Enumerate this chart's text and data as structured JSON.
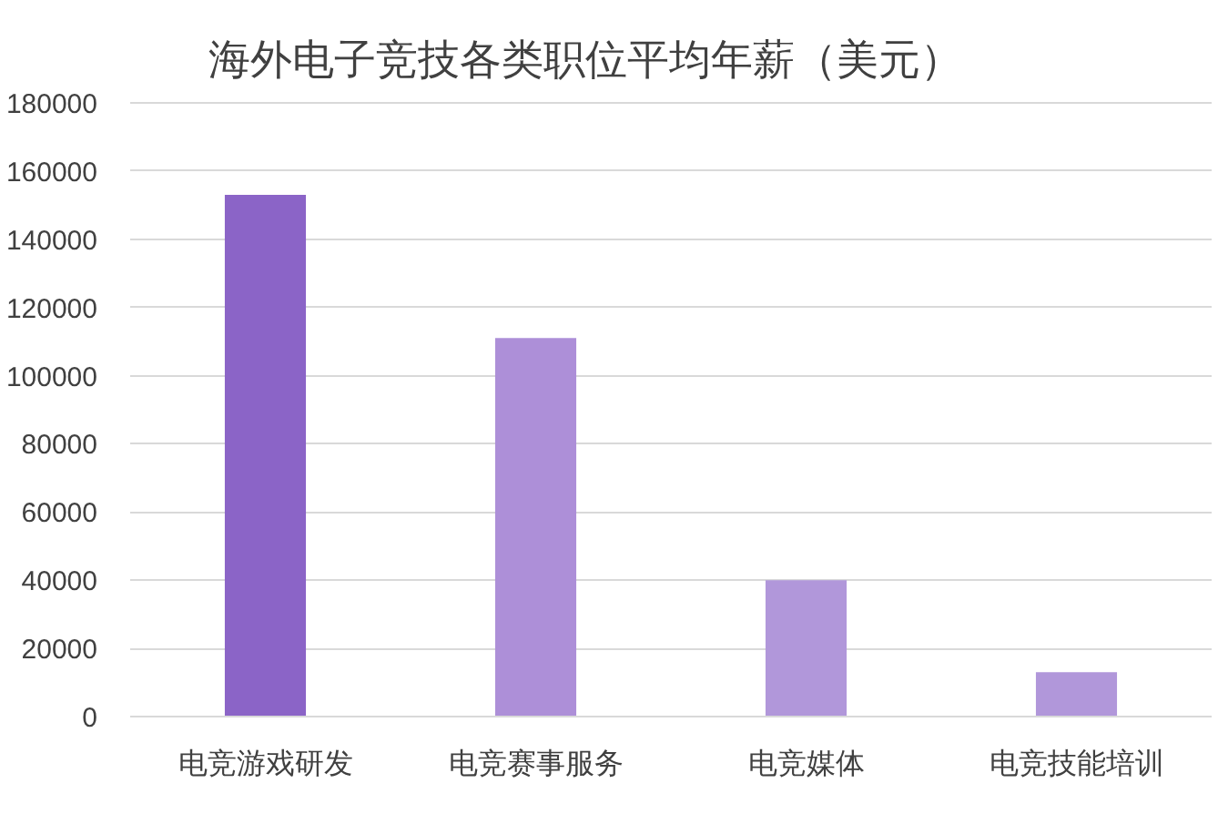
{
  "chart_data": {
    "type": "bar",
    "title": "海外电子竞技各类职位平均年薪（美元）",
    "categories": [
      "电竞游戏研发",
      "电竞赛事服务",
      "电竞媒体",
      "电竞技能培训"
    ],
    "values": [
      153000,
      111000,
      40000,
      13000
    ],
    "colors": [
      "#8b64c7",
      "#ad8fd8",
      "#b197da",
      "#b197da"
    ],
    "ylim": [
      0,
      180000
    ],
    "yticks": [
      0,
      20000,
      40000,
      60000,
      80000,
      100000,
      120000,
      140000,
      160000,
      180000
    ],
    "grid": "y"
  }
}
